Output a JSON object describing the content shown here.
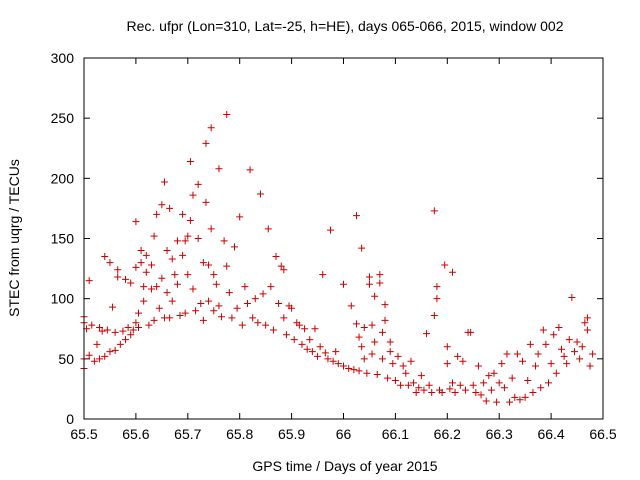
{
  "chart_data": {
    "type": "scatter",
    "title": "Rec. ufpr (Lon=310, Lat=-25, h=HE), days 065-066, 2015, window 002",
    "xlabel": "GPS time / Days of year 2015",
    "ylabel": "STEC from uqrg / TECUs",
    "xlim": [
      65.5,
      66.5
    ],
    "ylim": [
      0,
      300
    ],
    "xticks": [
      65.5,
      65.6,
      65.7,
      65.8,
      65.9,
      66.0,
      66.1,
      66.2,
      66.3,
      66.4,
      66.5
    ],
    "xtick_labels": [
      "65.5",
      "65.6",
      "65.7",
      "65.8",
      "65.9",
      "66",
      "66.1",
      "66.2",
      "66.3",
      "66.4",
      "66.5"
    ],
    "yticks": [
      0,
      50,
      100,
      150,
      200,
      250,
      300
    ],
    "ytick_labels": [
      "0",
      "50",
      "100",
      "150",
      "200",
      "250",
      "300"
    ],
    "grid": false,
    "marker": "+",
    "color": "#cc0000",
    "points": [
      [
        65.5,
        85
      ],
      [
        65.5,
        80
      ],
      [
        65.5,
        50
      ],
      [
        65.5,
        42
      ],
      [
        65.505,
        75
      ],
      [
        65.51,
        115
      ],
      [
        65.51,
        53
      ],
      [
        65.515,
        78
      ],
      [
        65.52,
        48
      ],
      [
        65.525,
        62
      ],
      [
        65.53,
        76
      ],
      [
        65.53,
        50
      ],
      [
        65.535,
        73
      ],
      [
        65.54,
        135
      ],
      [
        65.54,
        52
      ],
      [
        65.545,
        74
      ],
      [
        65.55,
        130
      ],
      [
        65.55,
        56
      ],
      [
        65.555,
        93
      ],
      [
        65.56,
        72
      ],
      [
        65.56,
        57
      ],
      [
        65.565,
        118
      ],
      [
        65.565,
        124
      ],
      [
        65.57,
        62
      ],
      [
        65.575,
        73
      ],
      [
        65.58,
        116
      ],
      [
        65.58,
        66
      ],
      [
        65.585,
        76
      ],
      [
        65.59,
        113
      ],
      [
        65.59,
        70
      ],
      [
        65.595,
        74
      ],
      [
        65.6,
        164
      ],
      [
        65.6,
        126
      ],
      [
        65.6,
        80
      ],
      [
        65.605,
        88
      ],
      [
        65.605,
        76
      ],
      [
        65.61,
        140
      ],
      [
        65.61,
        130
      ],
      [
        65.615,
        110
      ],
      [
        65.615,
        98
      ],
      [
        65.62,
        136
      ],
      [
        65.62,
        122
      ],
      [
        65.625,
        78
      ],
      [
        65.63,
        128
      ],
      [
        65.63,
        108
      ],
      [
        65.635,
        152
      ],
      [
        65.635,
        82
      ],
      [
        65.64,
        170
      ],
      [
        65.64,
        110
      ],
      [
        65.645,
        92
      ],
      [
        65.65,
        178
      ],
      [
        65.65,
        117
      ],
      [
        65.655,
        197
      ],
      [
        65.655,
        84
      ],
      [
        65.66,
        140
      ],
      [
        65.66,
        105
      ],
      [
        65.665,
        175
      ],
      [
        65.665,
        84
      ],
      [
        65.67,
        133
      ],
      [
        65.67,
        98
      ],
      [
        65.675,
        120
      ],
      [
        65.68,
        148
      ],
      [
        65.68,
        112
      ],
      [
        65.685,
        86
      ],
      [
        65.69,
        170
      ],
      [
        65.69,
        136
      ],
      [
        65.695,
        148
      ],
      [
        65.695,
        88
      ],
      [
        65.7,
        152
      ],
      [
        65.7,
        120
      ],
      [
        65.705,
        214
      ],
      [
        65.705,
        165
      ],
      [
        65.71,
        186
      ],
      [
        65.71,
        108
      ],
      [
        65.715,
        90
      ],
      [
        65.72,
        195
      ],
      [
        65.72,
        150
      ],
      [
        65.725,
        96
      ],
      [
        65.73,
        130
      ],
      [
        65.73,
        82
      ],
      [
        65.735,
        229
      ],
      [
        65.735,
        180
      ],
      [
        65.74,
        128
      ],
      [
        65.74,
        98
      ],
      [
        65.745,
        242
      ],
      [
        65.745,
        158
      ],
      [
        65.75,
        120
      ],
      [
        65.75,
        90
      ],
      [
        65.755,
        112
      ],
      [
        65.76,
        208
      ],
      [
        65.76,
        94
      ],
      [
        65.765,
        85
      ],
      [
        65.77,
        148
      ],
      [
        65.775,
        253
      ],
      [
        65.775,
        127
      ],
      [
        65.78,
        105
      ],
      [
        65.785,
        84
      ],
      [
        65.79,
        143
      ],
      [
        65.795,
        92
      ],
      [
        65.8,
        168
      ],
      [
        65.805,
        78
      ],
      [
        65.81,
        110
      ],
      [
        65.815,
        96
      ],
      [
        65.82,
        207
      ],
      [
        65.825,
        84
      ],
      [
        65.83,
        100
      ],
      [
        65.835,
        80
      ],
      [
        65.84,
        187
      ],
      [
        65.845,
        104
      ],
      [
        65.85,
        78
      ],
      [
        65.855,
        158
      ],
      [
        65.86,
        110
      ],
      [
        65.865,
        74
      ],
      [
        65.87,
        135
      ],
      [
        65.875,
        96
      ],
      [
        65.88,
        127
      ],
      [
        65.885,
        84
      ],
      [
        65.885,
        124
      ],
      [
        65.89,
        70
      ],
      [
        65.895,
        94
      ],
      [
        65.9,
        92
      ],
      [
        65.905,
        66
      ],
      [
        65.91,
        80
      ],
      [
        65.915,
        78
      ],
      [
        65.92,
        62
      ],
      [
        65.925,
        75
      ],
      [
        65.93,
        58
      ],
      [
        65.935,
        66
      ],
      [
        65.94,
        56
      ],
      [
        65.945,
        75
      ],
      [
        65.95,
        52
      ],
      [
        65.955,
        60
      ],
      [
        65.96,
        120
      ],
      [
        65.965,
        55
      ],
      [
        65.97,
        50
      ],
      [
        65.975,
        157
      ],
      [
        65.98,
        48
      ],
      [
        65.985,
        56
      ],
      [
        65.99,
        46
      ],
      [
        66.0,
        112
      ],
      [
        66.0,
        44
      ],
      [
        66.01,
        42
      ],
      [
        66.015,
        94
      ],
      [
        66.02,
        41
      ],
      [
        66.025,
        79
      ],
      [
        66.025,
        169
      ],
      [
        66.03,
        68
      ],
      [
        66.03,
        40
      ],
      [
        66.035,
        142
      ],
      [
        66.035,
        60
      ],
      [
        66.04,
        76
      ],
      [
        66.04,
        50
      ],
      [
        66.045,
        38
      ],
      [
        66.05,
        118
      ],
      [
        66.05,
        112
      ],
      [
        66.055,
        78
      ],
      [
        66.055,
        54
      ],
      [
        66.06,
        102
      ],
      [
        66.06,
        64
      ],
      [
        66.065,
        37
      ],
      [
        66.07,
        120
      ],
      [
        66.07,
        113
      ],
      [
        66.075,
        72
      ],
      [
        66.075,
        50
      ],
      [
        66.08,
        95
      ],
      [
        66.08,
        82
      ],
      [
        66.085,
        34
      ],
      [
        66.09,
        64
      ],
      [
        66.09,
        56
      ],
      [
        66.095,
        46
      ],
      [
        66.1,
        32
      ],
      [
        66.105,
        52
      ],
      [
        66.11,
        28
      ],
      [
        66.115,
        44
      ],
      [
        66.12,
        38
      ],
      [
        66.125,
        28
      ],
      [
        66.13,
        48
      ],
      [
        66.135,
        30
      ],
      [
        66.14,
        22
      ],
      [
        66.145,
        26
      ],
      [
        66.15,
        36
      ],
      [
        66.155,
        24
      ],
      [
        66.16,
        71
      ],
      [
        66.165,
        28
      ],
      [
        66.17,
        22
      ],
      [
        66.175,
        173
      ],
      [
        66.175,
        86
      ],
      [
        66.18,
        110
      ],
      [
        66.18,
        100
      ],
      [
        66.185,
        24
      ],
      [
        66.19,
        22
      ],
      [
        66.195,
        128
      ],
      [
        66.2,
        46
      ],
      [
        66.2,
        60
      ],
      [
        66.205,
        25
      ],
      [
        66.21,
        122
      ],
      [
        66.21,
        30
      ],
      [
        66.215,
        22
      ],
      [
        66.22,
        52
      ],
      [
        66.225,
        28
      ],
      [
        66.23,
        48
      ],
      [
        66.235,
        24
      ],
      [
        66.24,
        72
      ],
      [
        66.245,
        72
      ],
      [
        66.25,
        28
      ],
      [
        66.255,
        22
      ],
      [
        66.26,
        44
      ],
      [
        66.265,
        20
      ],
      [
        66.27,
        30
      ],
      [
        66.275,
        15
      ],
      [
        66.28,
        36
      ],
      [
        66.285,
        24
      ],
      [
        66.29,
        38
      ],
      [
        66.295,
        14
      ],
      [
        66.3,
        30
      ],
      [
        66.305,
        46
      ],
      [
        66.31,
        26
      ],
      [
        66.315,
        54
      ],
      [
        66.32,
        14
      ],
      [
        66.325,
        34
      ],
      [
        66.33,
        18
      ],
      [
        66.335,
        54
      ],
      [
        66.34,
        16
      ],
      [
        66.345,
        48
      ],
      [
        66.35,
        18
      ],
      [
        66.355,
        32
      ],
      [
        66.36,
        62
      ],
      [
        66.365,
        22
      ],
      [
        66.37,
        44
      ],
      [
        66.375,
        54
      ],
      [
        66.38,
        26
      ],
      [
        66.385,
        74
      ],
      [
        66.39,
        62
      ],
      [
        66.395,
        30
      ],
      [
        66.4,
        46
      ],
      [
        66.405,
        70
      ],
      [
        66.41,
        38
      ],
      [
        66.415,
        76
      ],
      [
        66.42,
        58
      ],
      [
        66.425,
        52
      ],
      [
        66.43,
        46
      ],
      [
        66.435,
        66
      ],
      [
        66.44,
        101
      ],
      [
        66.445,
        56
      ],
      [
        66.45,
        64
      ],
      [
        66.455,
        50
      ],
      [
        66.46,
        60
      ],
      [
        66.465,
        80
      ],
      [
        66.47,
        84
      ],
      [
        66.47,
        74
      ],
      [
        66.475,
        44
      ],
      [
        66.48,
        54
      ]
    ]
  }
}
